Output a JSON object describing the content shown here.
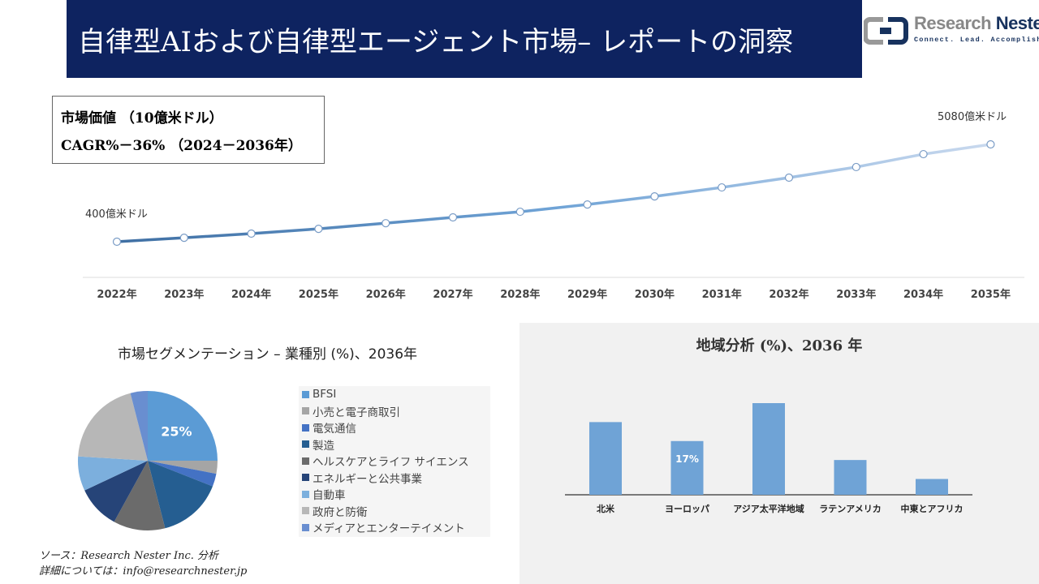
{
  "header": {
    "title": "自律型AIおよび自律型エージェント市場– レポートの洞察"
  },
  "logo": {
    "name_part1": "Research ",
    "name_part2": "Nester",
    "tagline": "Connect. Lead. Accomplish"
  },
  "infobox": {
    "line1": "市場価値 （10億米ドル）",
    "line2": "CAGR%－36% （2024－2036年）"
  },
  "colors": {
    "header_bg": "#0e2360",
    "bar": "#6fa3d6",
    "line_start": "#3f6fa3",
    "line_end": "#c9d9ee"
  },
  "chart_data": [
    {
      "type": "line",
      "x": [
        "2022年",
        "2023年",
        "2024年",
        "2025年",
        "2026年",
        "2027年",
        "2028年",
        "2029年",
        "2030年",
        "2031年",
        "2032年",
        "2033年",
        "2034年",
        "2035年"
      ],
      "values": [
        40,
        59,
        79,
        102,
        129,
        157,
        184,
        219,
        258,
        301,
        348,
        399,
        461,
        508
      ],
      "annotations": {
        "start": "400億米ドル",
        "end": "5080億米ドル"
      }
    },
    {
      "type": "pie",
      "title": "市場セグメンテーション – 業種別 (%)、2036年",
      "slices": [
        {
          "name": "BFSI",
          "value": 25,
          "color": "#5b9bd5",
          "label": "25%"
        },
        {
          "name": "小売と電子商取引",
          "value": 3,
          "color": "#a5a5a5"
        },
        {
          "name": "電気通信",
          "value": 3,
          "color": "#4472c4"
        },
        {
          "name": "製造",
          "value": 15,
          "color": "#255e91"
        },
        {
          "name": "ヘルスケアとライフ サイエンス",
          "value": 12,
          "color": "#6b6b6b"
        },
        {
          "name": "エネルギーと公共事業",
          "value": 10,
          "color": "#264478"
        },
        {
          "name": "自動車",
          "value": 8,
          "color": "#7cafdd"
        },
        {
          "name": "政府と防衛",
          "value": 20,
          "color": "#b7b7b7"
        },
        {
          "name": "メディアとエンターテイメント",
          "value": 4,
          "color": "#698ed0"
        }
      ]
    },
    {
      "type": "bar",
      "title": "地域分析 (%)、2036 年",
      "categories": [
        "北米",
        "ヨーロッパ",
        "アジア太平洋地域",
        "ラテンアメリカ",
        "中東とアフリカ"
      ],
      "values": [
        23,
        17,
        29,
        11,
        5
      ],
      "data_labels": [
        "",
        "17%",
        "",
        "",
        ""
      ]
    }
  ],
  "source": {
    "line1": "ソース：Research Nester Inc. 分析",
    "line2": "詳細については：info@researchnester.jp"
  }
}
